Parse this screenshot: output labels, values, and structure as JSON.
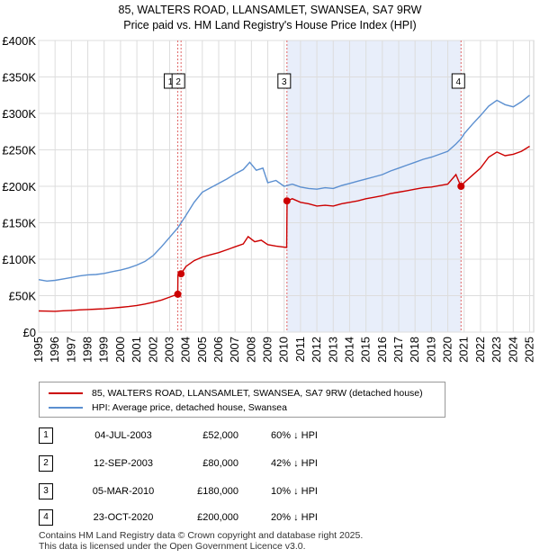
{
  "title": {
    "line1": "85, WALTERS ROAD, LLANSAMLET, SWANSEA, SA7 9RW",
    "line2": "Price paid vs. HM Land Registry's House Price Index (HPI)"
  },
  "chart_data": {
    "type": "line",
    "title": "85, WALTERS ROAD, LLANSAMLET, SWANSEA, SA7 9RW",
    "subtitle": "Price paid vs. HM Land Registry's House Price Index (HPI)",
    "xlabel": "",
    "ylabel": "",
    "xlim": [
      1995,
      2025.25
    ],
    "ylim": [
      0,
      400000
    ],
    "y_ticks": [
      {
        "value": 0,
        "label": "£0"
      },
      {
        "value": 50000,
        "label": "£50K"
      },
      {
        "value": 100000,
        "label": "£100K"
      },
      {
        "value": 150000,
        "label": "£150K"
      },
      {
        "value": 200000,
        "label": "£200K"
      },
      {
        "value": 250000,
        "label": "£250K"
      },
      {
        "value": 300000,
        "label": "£300K"
      },
      {
        "value": 350000,
        "label": "£350K"
      },
      {
        "value": 400000,
        "label": "£400K"
      }
    ],
    "x_ticks": [
      "1995",
      "1996",
      "1997",
      "1998",
      "1999",
      "2000",
      "2001",
      "2002",
      "2003",
      "2004",
      "2005",
      "2006",
      "2007",
      "2008",
      "2009",
      "2010",
      "2011",
      "2012",
      "2013",
      "2014",
      "2015",
      "2016",
      "2017",
      "2018",
      "2019",
      "2020",
      "2021",
      "2022",
      "2023",
      "2024",
      "2025"
    ],
    "grid": true,
    "shaded_span": [
      2010.17,
      2020.81
    ],
    "series": [
      {
        "name": "85, WALTERS ROAD, LLANSAMLET, SWANSEA, SA7 9RW (detached house)",
        "color": "#cc0000",
        "points": [
          [
            1995.0,
            29000
          ],
          [
            1995.5,
            28800
          ],
          [
            1996.0,
            28500
          ],
          [
            1996.5,
            29200
          ],
          [
            1997.0,
            29800
          ],
          [
            1997.5,
            30500
          ],
          [
            1998.0,
            31000
          ],
          [
            1998.5,
            31500
          ],
          [
            1999.0,
            32000
          ],
          [
            1999.5,
            33000
          ],
          [
            2000.0,
            34000
          ],
          [
            2000.5,
            35000
          ],
          [
            2001.0,
            36500
          ],
          [
            2001.5,
            38500
          ],
          [
            2002.0,
            41000
          ],
          [
            2002.5,
            44000
          ],
          [
            2003.0,
            48000
          ],
          [
            2003.5,
            52000
          ],
          [
            2003.51,
            78000
          ],
          [
            2003.7,
            80000
          ],
          [
            2004.0,
            90000
          ],
          [
            2004.5,
            98000
          ],
          [
            2005.0,
            103000
          ],
          [
            2005.5,
            106000
          ],
          [
            2006.0,
            109000
          ],
          [
            2006.5,
            113000
          ],
          [
            2007.0,
            117000
          ],
          [
            2007.5,
            121000
          ],
          [
            2007.8,
            131000
          ],
          [
            2008.2,
            124000
          ],
          [
            2008.6,
            126000
          ],
          [
            2009.0,
            120000
          ],
          [
            2009.5,
            118000
          ],
          [
            2010.15,
            116000
          ],
          [
            2010.18,
            180000
          ],
          [
            2010.5,
            183000
          ],
          [
            2011.0,
            178000
          ],
          [
            2011.5,
            176000
          ],
          [
            2012.0,
            173000
          ],
          [
            2012.5,
            174000
          ],
          [
            2013.0,
            173000
          ],
          [
            2013.5,
            176000
          ],
          [
            2014.0,
            178000
          ],
          [
            2014.5,
            180000
          ],
          [
            2015.0,
            183000
          ],
          [
            2015.5,
            185000
          ],
          [
            2016.0,
            187000
          ],
          [
            2016.5,
            190000
          ],
          [
            2017.0,
            192000
          ],
          [
            2017.5,
            194000
          ],
          [
            2018.0,
            196000
          ],
          [
            2018.5,
            198000
          ],
          [
            2019.0,
            199000
          ],
          [
            2019.5,
            201000
          ],
          [
            2020.0,
            203000
          ],
          [
            2020.5,
            216000
          ],
          [
            2020.8,
            200000
          ],
          [
            2021.0,
            205000
          ],
          [
            2021.5,
            215000
          ],
          [
            2022.0,
            225000
          ],
          [
            2022.5,
            240000
          ],
          [
            2023.0,
            247000
          ],
          [
            2023.5,
            242000
          ],
          [
            2024.0,
            244000
          ],
          [
            2024.5,
            248000
          ],
          [
            2025.0,
            255000
          ]
        ]
      },
      {
        "name": "HPI: Average price, detached house, Swansea",
        "color": "#5b8fd0",
        "points": [
          [
            1995.0,
            72000
          ],
          [
            1995.5,
            70000
          ],
          [
            1996.0,
            71000
          ],
          [
            1996.5,
            73000
          ],
          [
            1997.0,
            75000
          ],
          [
            1997.5,
            77000
          ],
          [
            1998.0,
            78500
          ],
          [
            1998.5,
            79000
          ],
          [
            1999.0,
            80500
          ],
          [
            1999.5,
            83000
          ],
          [
            2000.0,
            85000
          ],
          [
            2000.5,
            88000
          ],
          [
            2001.0,
            92000
          ],
          [
            2001.5,
            97000
          ],
          [
            2002.0,
            105000
          ],
          [
            2002.5,
            117000
          ],
          [
            2003.0,
            130000
          ],
          [
            2003.5,
            143000
          ],
          [
            2004.0,
            160000
          ],
          [
            2004.5,
            178000
          ],
          [
            2005.0,
            192000
          ],
          [
            2005.5,
            198000
          ],
          [
            2006.0,
            204000
          ],
          [
            2006.5,
            210000
          ],
          [
            2007.0,
            217000
          ],
          [
            2007.5,
            223000
          ],
          [
            2007.9,
            233000
          ],
          [
            2008.3,
            222000
          ],
          [
            2008.7,
            225000
          ],
          [
            2009.0,
            205000
          ],
          [
            2009.5,
            208000
          ],
          [
            2010.0,
            200000
          ],
          [
            2010.5,
            203000
          ],
          [
            2011.0,
            199000
          ],
          [
            2011.5,
            197000
          ],
          [
            2012.0,
            196000
          ],
          [
            2012.5,
            198000
          ],
          [
            2013.0,
            197000
          ],
          [
            2013.5,
            201000
          ],
          [
            2014.0,
            204000
          ],
          [
            2014.5,
            207000
          ],
          [
            2015.0,
            210000
          ],
          [
            2015.5,
            213000
          ],
          [
            2016.0,
            216000
          ],
          [
            2016.5,
            221000
          ],
          [
            2017.0,
            225000
          ],
          [
            2017.5,
            229000
          ],
          [
            2018.0,
            233000
          ],
          [
            2018.5,
            237000
          ],
          [
            2019.0,
            240000
          ],
          [
            2019.5,
            244000
          ],
          [
            2020.0,
            248000
          ],
          [
            2020.5,
            258000
          ],
          [
            2020.8,
            265000
          ],
          [
            2021.0,
            272000
          ],
          [
            2021.5,
            285000
          ],
          [
            2022.0,
            297000
          ],
          [
            2022.5,
            310000
          ],
          [
            2023.0,
            318000
          ],
          [
            2023.5,
            312000
          ],
          [
            2024.0,
            309000
          ],
          [
            2024.5,
            316000
          ],
          [
            2025.0,
            325000
          ]
        ]
      }
    ],
    "sales": [
      {
        "id": "1",
        "date": 2003.5,
        "price": 52000
      },
      {
        "id": "2",
        "date": 2003.7,
        "price": 80000
      },
      {
        "id": "3",
        "date": 2010.17,
        "price": 180000
      },
      {
        "id": "4",
        "date": 2020.81,
        "price": 200000
      }
    ],
    "annotation_labels": [
      "1",
      "2",
      "3",
      "4"
    ]
  },
  "legend": {
    "property": "85, WALTERS ROAD, LLANSAMLET, SWANSEA, SA7 9RW (detached house)",
    "hpi": "HPI: Average price, detached house, Swansea",
    "property_color": "#cc0000",
    "hpi_color": "#5b8fd0"
  },
  "sales_table": [
    {
      "num": "1",
      "date": "04-JUL-2003",
      "price": "£52,000",
      "hpi": "60% ↓ HPI"
    },
    {
      "num": "2",
      "date": "12-SEP-2003",
      "price": "£80,000",
      "hpi": "42% ↓ HPI"
    },
    {
      "num": "3",
      "date": "05-MAR-2010",
      "price": "£180,000",
      "hpi": "10% ↓ HPI"
    },
    {
      "num": "4",
      "date": "23-OCT-2020",
      "price": "£200,000",
      "hpi": "20% ↓ HPI"
    }
  ],
  "footer": {
    "line1": "Contains HM Land Registry data © Crown copyright and database right 2025.",
    "line2": "This data is licensed under the Open Government Licence v3.0."
  }
}
